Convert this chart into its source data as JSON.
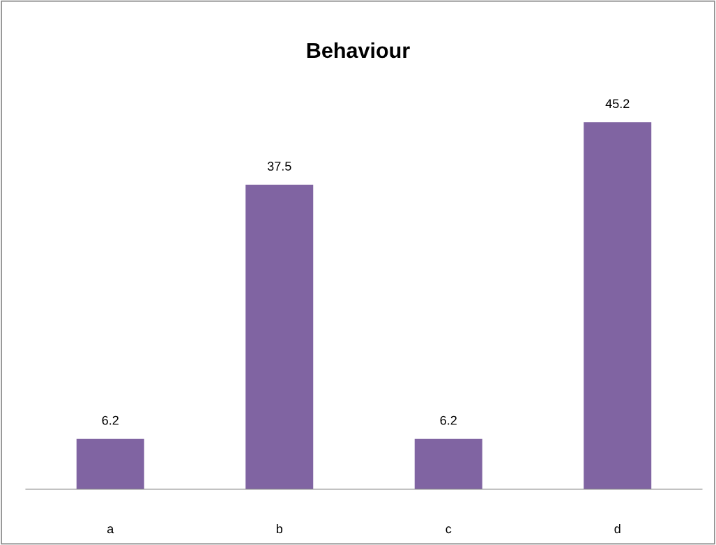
{
  "chart_data": {
    "type": "bar",
    "title": "Behaviour",
    "categories": [
      "a",
      "b",
      "c",
      "d"
    ],
    "values": [
      6.2,
      37.5,
      6.2,
      45.2
    ],
    "color": "#8064a2",
    "data_labels": true,
    "tick_labels": "x",
    "grid": false,
    "legend": false
  }
}
